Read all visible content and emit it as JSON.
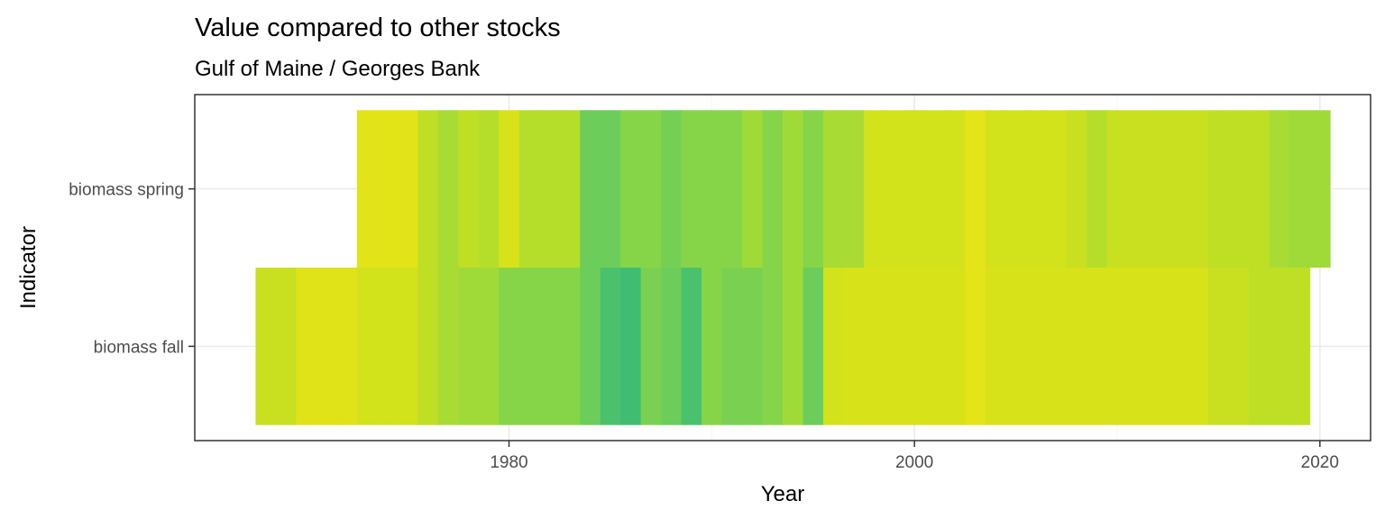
{
  "chart_data": {
    "type": "heatmap",
    "title": "Value compared to other stocks",
    "subtitle": "Gulf of Maine / Georges Bank",
    "xlabel": "Year",
    "ylabel": "Indicator",
    "xlim": [
      1964.5,
      2022.5
    ],
    "x_ticks": [
      1980,
      2000,
      2020
    ],
    "grid": true,
    "legend": "none",
    "categories": [
      "biomass fall",
      "biomass spring"
    ],
    "series": [
      {
        "name": "biomass fall",
        "x": [
          1968,
          1969,
          1970,
          1971,
          1972,
          1973,
          1974,
          1975,
          1976,
          1977,
          1978,
          1979,
          1980,
          1981,
          1982,
          1983,
          1984,
          1985,
          1986,
          1987,
          1988,
          1989,
          1990,
          1991,
          1992,
          1993,
          1994,
          1995,
          1996,
          1997,
          1998,
          1999,
          2000,
          2001,
          2002,
          2003,
          2004,
          2005,
          2006,
          2007,
          2008,
          2009,
          2010,
          2011,
          2012,
          2013,
          2014,
          2015,
          2016,
          2017,
          2018,
          2019
        ],
        "colors": [
          "#c8e020",
          "#c8e020",
          "#dfe318",
          "#dfe318",
          "#dfe318",
          "#d2e21b",
          "#d2e21b",
          "#d2e21b",
          "#bfdf25",
          "#a8db34",
          "#a0da39",
          "#a0da39",
          "#86d549",
          "#86d549",
          "#86d549",
          "#86d549",
          "#6ccd5a",
          "#4ac16d",
          "#40bd72",
          "#7ad151",
          "#6ccd5a",
          "#4ac16d",
          "#86d549",
          "#7ad151",
          "#7ad151",
          "#86d549",
          "#a0da39",
          "#6ccd5a",
          "#d2e21b",
          "#d8e219",
          "#d8e219",
          "#d8e219",
          "#d8e219",
          "#d8e219",
          "#d8e219",
          "#e5e419",
          "#d8e219",
          "#d8e219",
          "#d8e219",
          "#d8e219",
          "#d8e219",
          "#d8e219",
          "#d8e219",
          "#d8e219",
          "#d8e219",
          "#d8e219",
          "#d8e219",
          "#c8e020",
          "#c8e020",
          "#bfdf25",
          "#bfdf25",
          "#bfdf25"
        ]
      },
      {
        "name": "biomass spring",
        "x": [
          1973,
          1974,
          1975,
          1976,
          1977,
          1978,
          1979,
          1980,
          1981,
          1982,
          1983,
          1984,
          1985,
          1986,
          1987,
          1988,
          1989,
          1990,
          1991,
          1992,
          1993,
          1994,
          1995,
          1996,
          1997,
          1998,
          1999,
          2000,
          2001,
          2002,
          2003,
          2004,
          2005,
          2006,
          2007,
          2008,
          2009,
          2010,
          2011,
          2012,
          2013,
          2014,
          2015,
          2016,
          2017,
          2018,
          2019,
          2020
        ],
        "colors": [
          "#e2e418",
          "#e2e418",
          "#e2e418",
          "#bfdf25",
          "#a8db34",
          "#bfdf25",
          "#b5de2b",
          "#d8e219",
          "#b5de2b",
          "#b5de2b",
          "#b5de2b",
          "#6ccd5a",
          "#6ccd5a",
          "#86d549",
          "#86d549",
          "#74d055",
          "#86d549",
          "#86d549",
          "#86d549",
          "#a0da39",
          "#86d549",
          "#a0da39",
          "#86d549",
          "#a8db34",
          "#a8db34",
          "#d2e21b",
          "#d2e21b",
          "#d2e21b",
          "#d2e21b",
          "#d2e21b",
          "#e5e419",
          "#d2e21b",
          "#d2e21b",
          "#d2e21b",
          "#d2e21b",
          "#c8e020",
          "#b5de2b",
          "#c8e020",
          "#c8e020",
          "#c8e020",
          "#c8e020",
          "#c8e020",
          "#bfdf25",
          "#bfdf25",
          "#bfdf25",
          "#a8db34",
          "#a0da39",
          "#a0da39"
        ]
      }
    ]
  }
}
